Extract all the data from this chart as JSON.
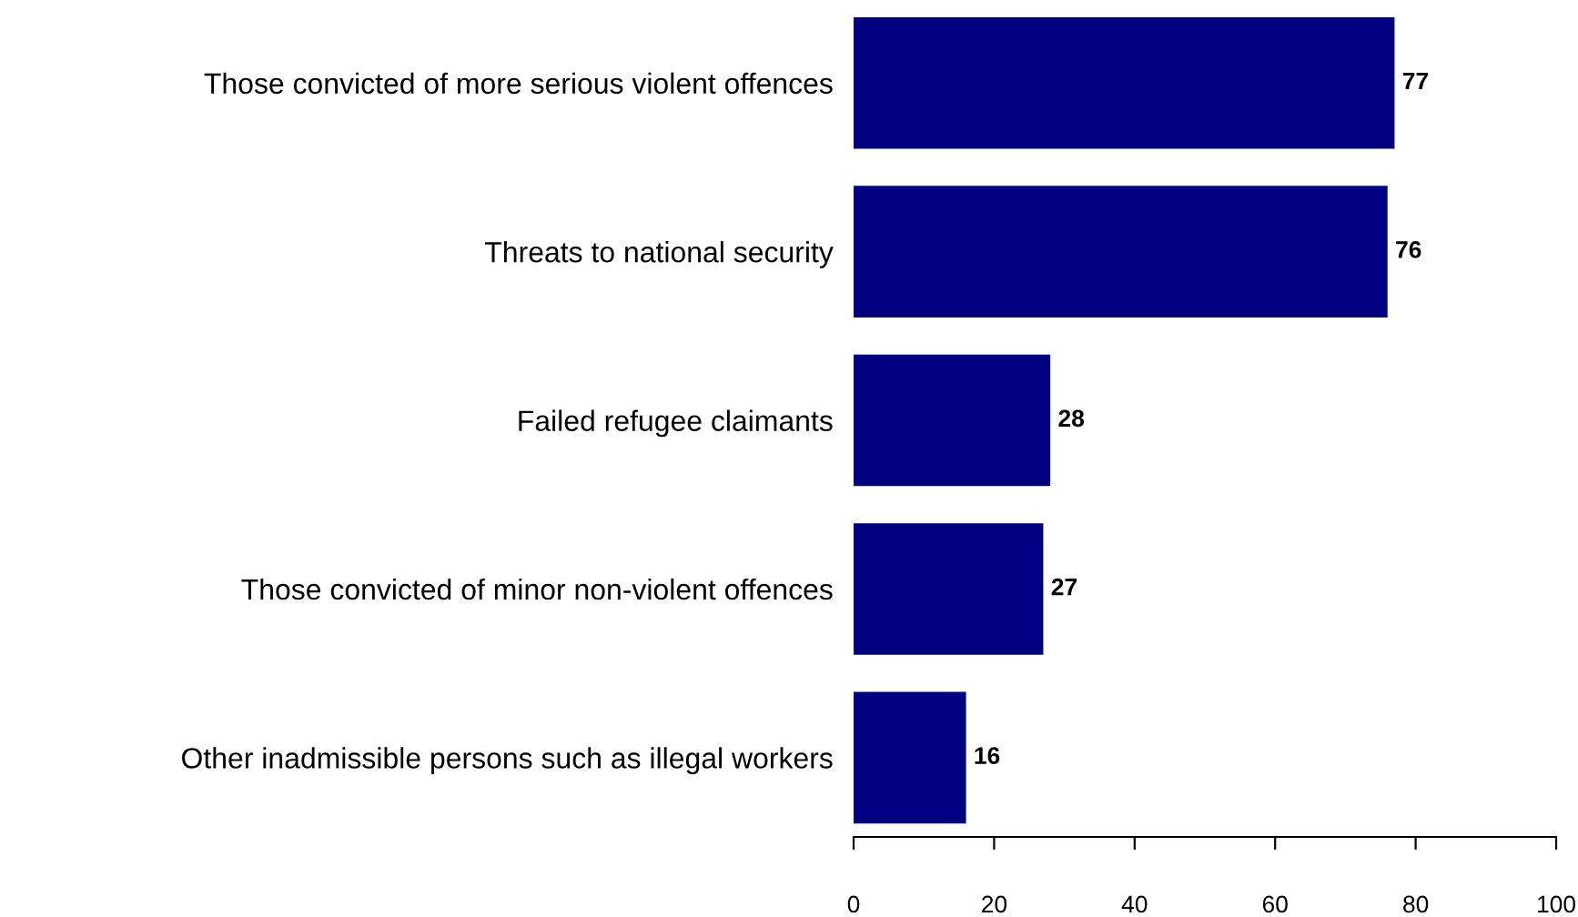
{
  "chart_data": {
    "type": "bar",
    "orientation": "horizontal",
    "categories": [
      "Those convicted of more serious violent offences",
      "Threats to national security",
      "Failed refugee claimants",
      "Those convicted of minor non-violent offences",
      "Other inadmissible persons such as illegal workers"
    ],
    "values": [
      77,
      76,
      28,
      27,
      16
    ],
    "color": "#000080",
    "xlim": [
      0,
      100
    ],
    "xticks": [
      0,
      20,
      40,
      60,
      80,
      100
    ],
    "data_labels": true,
    "grid": false,
    "legend": false
  }
}
